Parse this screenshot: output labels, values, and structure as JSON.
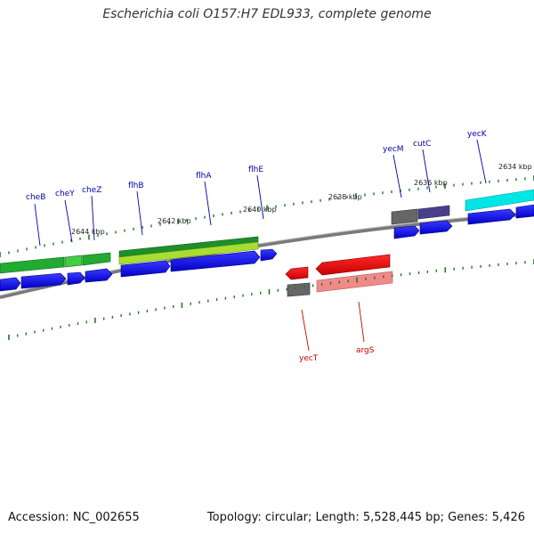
{
  "title": "Escherichia coli O157:H7 EDL933, complete genome",
  "footer": {
    "accession": "Accession: NC_002655",
    "stats": "Topology: circular; Length: 5,528,445 bp; Genes: 5,426"
  },
  "colors": {
    "backbone": "#808080",
    "cds_forward": "#0000ee",
    "cds_reverse": "#ee0000",
    "label_forward": "#0000aa",
    "label_reverse": "#cc0000",
    "tick": "#227722",
    "cog_green": "#22aa22",
    "cog_lightgreen": "#aadd33",
    "cog_cyan": "#00e6e6",
    "cog_grey": "#666666",
    "cog_purple": "#4a3f8a",
    "cog_pink": "#f08080"
  },
  "scale_labels": [
    "2644 kbp",
    "2642 kbp",
    "2640 kbp",
    "2638 kbp",
    "2636 kbp",
    "2634 kbp"
  ],
  "genes_forward": [
    "cheB",
    "cheY",
    "cheZ",
    "flhB",
    "flhA",
    "flhE",
    "yecM",
    "cutC",
    "yecK"
  ],
  "genes_reverse": [
    "yecT",
    "argS"
  ]
}
